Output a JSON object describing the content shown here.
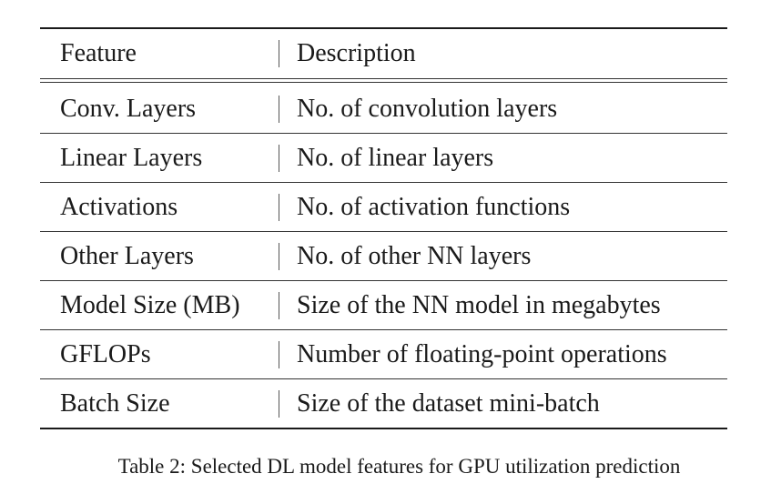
{
  "table": {
    "header": {
      "feature": "Feature",
      "description": "Description"
    },
    "rows": [
      {
        "feature": "Conv. Layers",
        "description": "No. of convolution layers"
      },
      {
        "feature": "Linear Layers",
        "description": "No. of linear layers"
      },
      {
        "feature": "Activations",
        "description": "No. of activation functions"
      },
      {
        "feature": "Other Layers",
        "description": "No. of other NN layers"
      },
      {
        "feature": "Model Size (MB)",
        "description": "Size of the NN model in megabytes"
      },
      {
        "feature": "GFLOPs",
        "description": "Number of floating-point operations"
      },
      {
        "feature": "Batch Size",
        "description": "Size of the dataset mini-batch"
      }
    ]
  },
  "caption": "Table 2: Selected DL model features for GPU utilization prediction"
}
